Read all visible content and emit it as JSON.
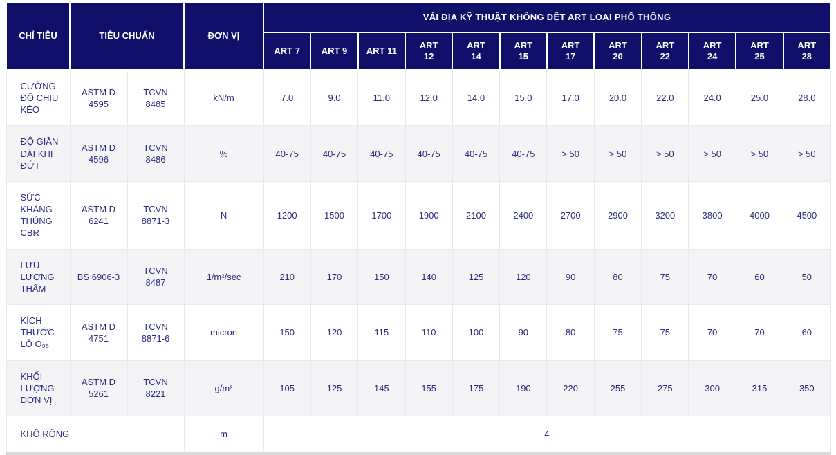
{
  "table": {
    "header": {
      "col_chi_tieu": "CHỈ TIÊU",
      "col_tieu_chuan": "TIÊU CHUẨN",
      "col_don_vi": "ĐƠN VỊ",
      "group_title": "VẢI ĐỊA KỸ THUẬT KHÔNG DỆT ART LOẠI PHỔ THÔNG",
      "art_columns": [
        "ART 7",
        "ART 9",
        "ART 11",
        "ART 12",
        "ART 14",
        "ART 15",
        "ART 17",
        "ART 20",
        "ART 22",
        "ART 24",
        "ART 25",
        "ART 28"
      ]
    },
    "rows": [
      {
        "label": "CƯỜNG ĐỘ CHỊU KÉO",
        "astm": "ASTM D 4595",
        "tcvn": "TCVN 8485",
        "unit": "kN/m",
        "values": [
          "7.0",
          "9.0",
          "11.0",
          "12.0",
          "14.0",
          "15.0",
          "17.0",
          "20.0",
          "22.0",
          "24.0",
          "25.0",
          "28.0"
        ]
      },
      {
        "label": "ĐỘ GIÃN DÀI KHI ĐỨT",
        "astm": "ASTM D 4596",
        "tcvn": "TCVN 8486",
        "unit": "%",
        "values": [
          "40-75",
          "40-75",
          "40-75",
          "40-75",
          "40-75",
          "40-75",
          "> 50",
          "> 50",
          "> 50",
          "> 50",
          "> 50",
          "> 50"
        ]
      },
      {
        "label": "SỨC KHÁNG THỦNG CBR",
        "astm": "ASTM D 6241",
        "tcvn": "TCVN 8871-3",
        "unit": "N",
        "values": [
          "1200",
          "1500",
          "1700",
          "1900",
          "2100",
          "2400",
          "2700",
          "2900",
          "3200",
          "3800",
          "4000",
          "4500"
        ]
      },
      {
        "label": "LƯU LƯỢNG THẤM",
        "astm": "BS 6906-3",
        "tcvn": "TCVN 8487",
        "unit": "1/m²/sec",
        "values": [
          "210",
          "170",
          "150",
          "140",
          "125",
          "120",
          "90",
          "80",
          "75",
          "70",
          "60",
          "50"
        ]
      },
      {
        "label": "KÍCH THƯỚC LỖ O₉₅",
        "astm": "ASTM D 4751",
        "tcvn": "TCVN 8871-6",
        "unit": "micron",
        "values": [
          "150",
          "120",
          "115",
          "110",
          "100",
          "90",
          "80",
          "75",
          "75",
          "70",
          "70",
          "60"
        ]
      },
      {
        "label": "KHỐI LƯỢNG ĐƠN VỊ",
        "astm": "ASTM D 5261",
        "tcvn": "TCVN 8221",
        "unit": "g/m²",
        "values": [
          "105",
          "125",
          "145",
          "155",
          "175",
          "190",
          "220",
          "255",
          "275",
          "300",
          "315",
          "350"
        ]
      }
    ],
    "footer_row": {
      "label": "KHỔ RỘNG",
      "unit": "m",
      "value": "4"
    }
  },
  "colors": {
    "header_bg": "#10106a",
    "header_text": "#ffffff",
    "body_text": "#2b2b80",
    "alt_row_bg": "#f4f4f6",
    "grid_border": "#e9e9ed",
    "bottom_strip": "#d9d9d9"
  }
}
